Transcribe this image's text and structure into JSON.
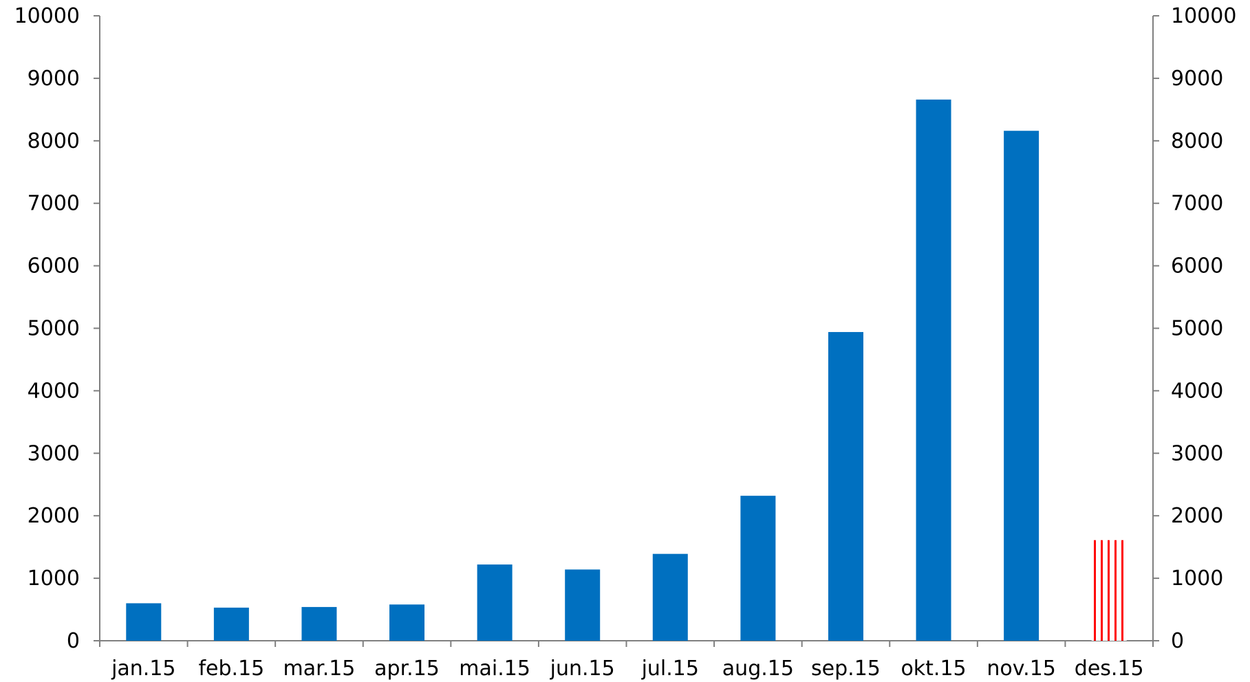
{
  "chart_data": {
    "type": "bar",
    "categories": [
      "jan.15",
      "feb.15",
      "mar.15",
      "apr.15",
      "mai.15",
      "jun.15",
      "jul.15",
      "aug.15",
      "sep.15",
      "okt.15",
      "nov.15",
      "des.15"
    ],
    "series": [
      {
        "values": [
          600,
          530,
          540,
          580,
          1220,
          1140,
          1390,
          2320,
          4940,
          8660,
          8160,
          1610
        ],
        "color": "#0070c0",
        "highlight_last_color": "#ff0000"
      }
    ],
    "ylim": [
      0,
      10000
    ],
    "yticks": [
      0,
      1000,
      2000,
      3000,
      4000,
      5000,
      6000,
      7000,
      8000,
      9000,
      10000
    ],
    "secondary_yticks": [
      0,
      1000,
      2000,
      3000,
      4000,
      5000,
      6000,
      7000,
      8000,
      9000,
      10000
    ],
    "grid": false,
    "legend": "none",
    "title": "",
    "xlabel": "",
    "ylabel": ""
  }
}
